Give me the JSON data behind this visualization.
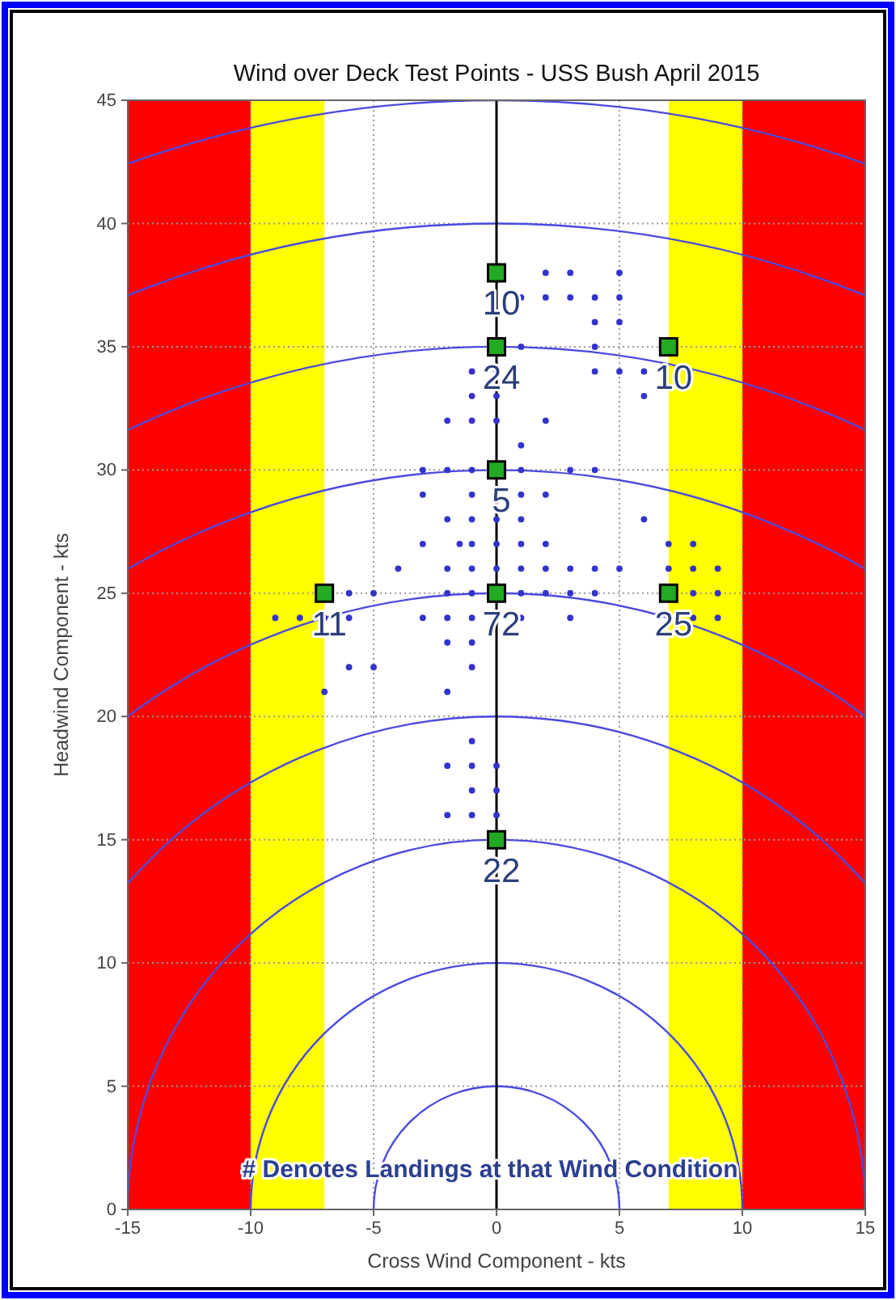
{
  "chart_data": {
    "type": "scatter",
    "title": "Wind over Deck Test Points - USS Bush April 2015",
    "xlabel": "Cross Wind Component - kts",
    "ylabel": "Headwind Component - kts",
    "xlim": [
      -15,
      15
    ],
    "xticks": [
      -15,
      -10,
      -5,
      0,
      5,
      10,
      15
    ],
    "ylim": [
      0,
      45
    ],
    "yticks": [
      0,
      5,
      10,
      15,
      20,
      25,
      30,
      35,
      40,
      45
    ],
    "grid": true,
    "bands": [
      {
        "axis": "x",
        "from": -15,
        "to": -10,
        "color": "#ff0000"
      },
      {
        "axis": "x",
        "from": -10,
        "to": -7,
        "color": "#ffff00"
      },
      {
        "axis": "x",
        "from": 7,
        "to": 10,
        "color": "#ffff00"
      },
      {
        "axis": "x",
        "from": 10,
        "to": 15,
        "color": "#ff0000"
      }
    ],
    "ref_lines": [
      {
        "axis": "x",
        "value": 0,
        "color": "#000000"
      }
    ],
    "annotations": [
      "# Denotes Landings at that Wind  Condition",
      {
        "text": "10",
        "x": 0,
        "y": 38
      },
      {
        "text": "24",
        "x": 0,
        "y": 35
      },
      {
        "text": "10",
        "x": 7,
        "y": 35
      },
      {
        "text": "5",
        "x": 0,
        "y": 30
      },
      {
        "text": "11",
        "x": -7,
        "y": 25
      },
      {
        "text": "72",
        "x": 0,
        "y": 25
      },
      {
        "text": "25",
        "x": 7,
        "y": 25
      },
      {
        "text": "22",
        "x": 0,
        "y": 15
      }
    ],
    "series": [
      {
        "color": "#3333cc",
        "marker": "circle",
        "x": [
          2,
          3,
          5,
          1,
          2,
          3,
          4,
          5,
          4,
          5,
          1,
          4,
          -1,
          0,
          4,
          5,
          6,
          -1,
          0,
          6,
          -2,
          -1,
          0,
          2,
          1,
          -3,
          -2,
          -1,
          1,
          3,
          4,
          -3,
          -1,
          1,
          2,
          -2,
          -1,
          0,
          1,
          6,
          -3,
          -1.5,
          -1,
          0,
          1,
          2,
          7,
          8,
          -4,
          -2,
          -1,
          0,
          1,
          2,
          3,
          4,
          5,
          7,
          8,
          9,
          -6,
          -5,
          -2,
          -1,
          1,
          2,
          3,
          4,
          8,
          9,
          -9,
          -8,
          -7,
          -6,
          -3,
          -2,
          -1,
          1,
          3,
          8,
          9,
          -2,
          -1,
          -6,
          -5,
          -1,
          -7,
          -2,
          -1,
          -2,
          -1,
          0,
          -1,
          0,
          -2,
          -1,
          0
        ],
        "values": [
          38,
          38,
          38,
          37,
          37,
          37,
          37,
          37,
          36,
          36,
          35,
          35,
          34,
          34,
          34,
          34,
          34,
          33,
          33,
          33,
          32,
          32,
          32,
          32,
          31,
          30,
          30,
          30,
          30,
          30,
          30,
          29,
          29,
          29,
          29,
          28,
          28,
          28,
          28,
          28,
          27,
          27,
          27,
          27,
          27,
          27,
          27,
          27,
          26,
          26,
          26,
          26,
          26,
          26,
          26,
          26,
          26,
          26,
          26,
          26,
          25,
          25,
          25,
          25,
          25,
          25,
          25,
          25,
          25,
          25,
          24,
          24,
          24,
          24,
          24,
          24,
          24,
          24,
          24,
          24,
          24,
          23,
          23,
          22,
          22,
          22,
          21,
          21,
          19,
          18,
          18,
          18,
          17,
          17,
          16,
          16,
          16
        ]
      },
      {
        "color": "#22aa22",
        "marker": "square",
        "x": [
          0,
          0,
          7,
          0,
          -7,
          0,
          7,
          0
        ],
        "values": [
          38,
          35,
          35,
          30,
          25,
          25,
          25,
          15
        ]
      }
    ]
  }
}
